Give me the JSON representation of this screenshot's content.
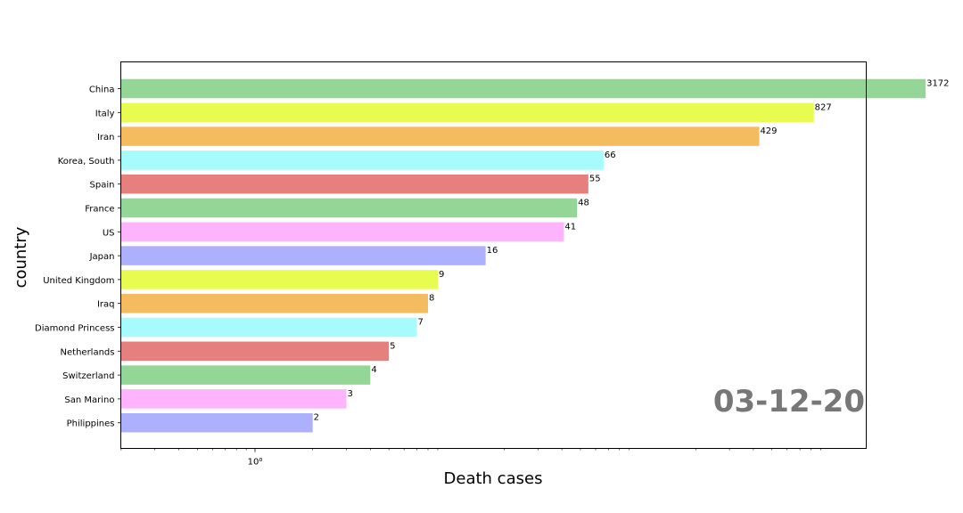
{
  "chart_data": {
    "type": "bar",
    "orientation": "horizontal",
    "xscale": "log",
    "categories": [
      "China",
      "Italy",
      "Iran",
      "Korea, South",
      "Spain",
      "France",
      "US",
      "Japan",
      "United Kingdom",
      "Iraq",
      "Diamond Princess",
      "Netherlands",
      "Switzerland",
      "San Marino",
      "Philippines"
    ],
    "values": [
      3172,
      827,
      429,
      66,
      55,
      48,
      41,
      16,
      9,
      8,
      7,
      5,
      4,
      3,
      2
    ],
    "value_labels": [
      "3172",
      "827",
      "429",
      "66",
      "55",
      "48",
      "41",
      "16",
      "9",
      "8",
      "7",
      "5",
      "4",
      "3",
      "2"
    ],
    "colors": [
      "#93d695",
      "#e8fc4f",
      "#f5bb5f",
      "#a6fcfc",
      "#e5807e",
      "#93d695",
      "#fdb4fc",
      "#adb0fc",
      "#e8fc4f",
      "#f5bb5f",
      "#a6fcfc",
      "#e5807e",
      "#93d695",
      "#fdb4fc",
      "#adb0fc"
    ],
    "xlabel": "Death cases",
    "ylabel": "country",
    "xtick_label": "10⁰",
    "annotation": "03-12-20",
    "grid": false,
    "legend": "none"
  }
}
